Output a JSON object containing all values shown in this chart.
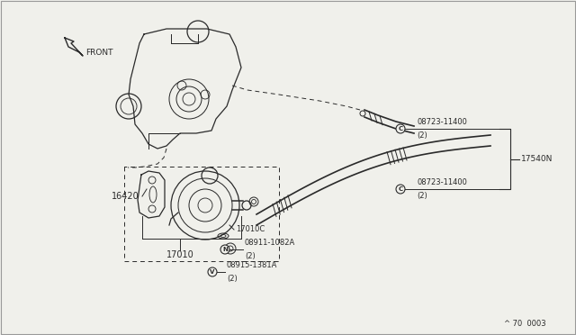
{
  "bg_color": "#f0f0eb",
  "line_color": "#2a2a2a",
  "page_ref": "^ 70  0003",
  "labels": {
    "front": "FRONT",
    "16420": "16420",
    "17010": "17010",
    "17010C": "17010C",
    "17540N": "17540N",
    "08723_top": "08723-11400",
    "08723_top_qty": "(2)",
    "08723_bot": "08723-11400",
    "08723_bot_qty": "(2)",
    "08911": "08911-1082A",
    "08911_qty": "(2)",
    "08915": "08915-1381A",
    "08915_qty": "(2)"
  },
  "circle_symbol_C": "C",
  "circle_symbol_N": "N",
  "circle_symbol_V": "V"
}
